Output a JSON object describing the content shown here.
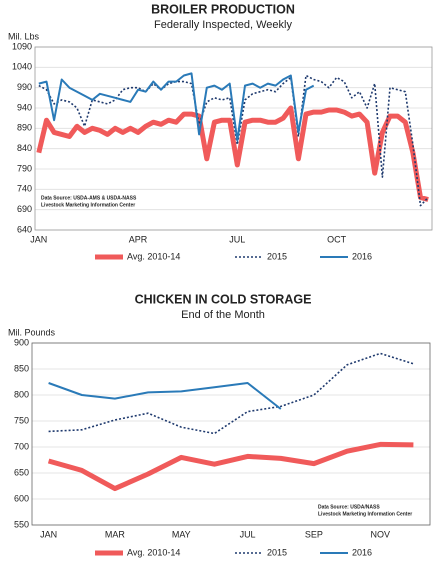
{
  "chart_data": [
    {
      "type": "line",
      "title": "BROILER PRODUCTION",
      "subtitle": "Federally Inspected, Weekly",
      "y_label": "Mil. Lbs",
      "notes": [
        "Data Source: USDA-AMS & USDA-NASS",
        "Livestock Marketing Information Center"
      ],
      "categories": [
        "JAN",
        null,
        null,
        null,
        null,
        null,
        null,
        null,
        null,
        null,
        null,
        null,
        null,
        "APR",
        null,
        null,
        null,
        null,
        null,
        null,
        null,
        null,
        null,
        null,
        null,
        null,
        "JUL",
        null,
        null,
        null,
        null,
        null,
        null,
        null,
        null,
        null,
        null,
        null,
        null,
        "OCT",
        null,
        null,
        null,
        null,
        null,
        null,
        null,
        null,
        null,
        null,
        null,
        null
      ],
      "series": [
        {
          "name": "Avg. 2010-14",
          "color": "#f05a5a",
          "style": "solid",
          "width": 5,
          "values": [
            830,
            910,
            880,
            875,
            870,
            895,
            880,
            890,
            885,
            875,
            890,
            880,
            890,
            880,
            895,
            905,
            900,
            910,
            905,
            925,
            925,
            920,
            815,
            905,
            910,
            910,
            800,
            905,
            910,
            910,
            905,
            905,
            915,
            940,
            815,
            925,
            930,
            930,
            935,
            935,
            930,
            920,
            925,
            905,
            780,
            880,
            920,
            920,
            905,
            830,
            720,
            715
          ]
        },
        {
          "name": "2015",
          "color": "#1f3a6e",
          "style": "dotted",
          "width": 1.6,
          "values": [
            995,
            985,
            950,
            960,
            955,
            940,
            895,
            960,
            955,
            950,
            960,
            985,
            990,
            990,
            980,
            1000,
            985,
            1000,
            1005,
            1005,
            1000,
            900,
            955,
            965,
            960,
            965,
            850,
            960,
            975,
            980,
            985,
            980,
            1000,
            1015,
            870,
            1020,
            1010,
            1005,
            990,
            1015,
            1005,
            965,
            980,
            940,
            1000,
            770,
            990,
            985,
            980,
            850,
            700,
            720
          ]
        },
        {
          "name": "2016",
          "color": "#2a7ab8",
          "style": "solid",
          "width": 2,
          "values": [
            1000,
            1005,
            910,
            1010,
            990,
            980,
            970,
            960,
            975,
            970,
            965,
            960,
            955,
            985,
            980,
            1005,
            985,
            1005,
            1005,
            1020,
            1025,
            875,
            990,
            995,
            985,
            1000,
            860,
            995,
            1000,
            990,
            1000,
            995,
            1010,
            1020,
            880,
            985,
            995,
            null,
            null,
            null,
            null,
            null,
            null,
            null,
            null,
            null,
            null,
            null,
            null,
            null,
            null,
            null
          ]
        }
      ],
      "ylim": [
        640,
        1090
      ],
      "yticks": [
        640,
        690,
        740,
        790,
        840,
        890,
        940,
        990,
        1040,
        1090
      ],
      "grid": true
    },
    {
      "type": "line",
      "title": "CHICKEN IN COLD STORAGE",
      "subtitle": "End of the Month",
      "y_label": "Mil. Pounds",
      "notes": [
        "Data Source: USDA/NASS",
        "Livestock Marketing Information Center"
      ],
      "categories": [
        "JAN",
        null,
        "MAR",
        null,
        "MAY",
        null,
        "JUL",
        null,
        "SEP",
        null,
        "NOV",
        null
      ],
      "series": [
        {
          "name": "Avg. 2010-14",
          "color": "#f05a5a",
          "style": "solid",
          "width": 5,
          "values": [
            673,
            655,
            620,
            648,
            680,
            667,
            682,
            678,
            668,
            692,
            705,
            704
          ]
        },
        {
          "name": "2015",
          "color": "#1f3a6e",
          "style": "dotted",
          "width": 1.6,
          "values": [
            730,
            733,
            752,
            765,
            738,
            726,
            768,
            778,
            800,
            858,
            880,
            860
          ]
        },
        {
          "name": "2016",
          "color": "#2a7ab8",
          "style": "solid",
          "width": 2,
          "values": [
            823,
            800,
            793,
            805,
            807,
            815,
            823,
            773,
            null,
            null,
            null,
            null
          ]
        }
      ],
      "ylim": [
        550,
        900
      ],
      "yticks": [
        550,
        600,
        650,
        700,
        750,
        800,
        850,
        900
      ],
      "grid": true
    }
  ]
}
